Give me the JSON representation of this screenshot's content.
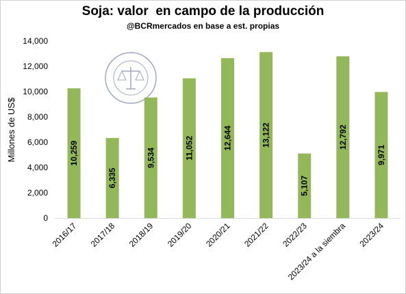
{
  "chart_data": {
    "type": "bar",
    "title": "Soja: valor  en campo de la producción",
    "subtitle": "@BCRmercados en base a est. propias",
    "xlabel": "",
    "ylabel": "Millones de US$",
    "ylim": [
      0,
      14000
    ],
    "yticks": [
      0,
      2000,
      4000,
      6000,
      8000,
      10000,
      12000,
      14000
    ],
    "ytick_labels": [
      "0",
      "2,000",
      "4,000",
      "6,000",
      "8,000",
      "10,000",
      "12,000",
      "14,000"
    ],
    "grid": false,
    "legend": "none",
    "bar_color": "#92b85a",
    "categories": [
      "2016/17",
      "2017/18",
      "2018/19",
      "2019/20",
      "2020/21",
      "2021/22",
      "2022/23",
      "2023/24 a la siembra",
      "2023/24"
    ],
    "values": [
      10259,
      6335,
      9534,
      11052,
      12644,
      13122,
      5107,
      12792,
      9971
    ],
    "value_labels": [
      "10,259",
      "6,335",
      "9,534",
      "11,052",
      "12,644",
      "13,122",
      "5,107",
      "12,792",
      "9,971"
    ]
  },
  "watermark": {
    "description": "Bolsa de Comercio de Rosario seal",
    "icon": "scales-of-justice-seal-icon",
    "color": "#a0a8c0"
  }
}
